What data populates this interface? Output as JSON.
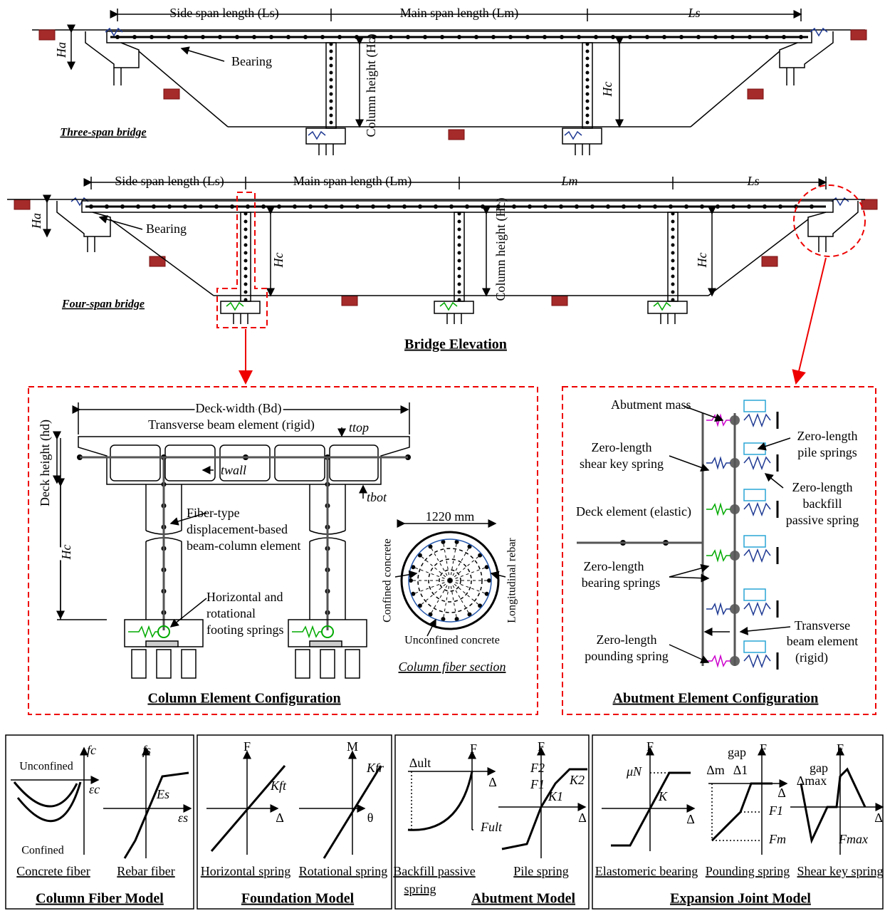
{
  "elevation": {
    "title": "Bridge Elevation",
    "three_span": {
      "label": "Three-span bridge",
      "side_span": "Side span length (Ls)",
      "main_span": "Main span length (Lm)",
      "end_span": "Ls",
      "abutment_height": "Ha",
      "bearing": "Bearing",
      "column_height": "Column height (Hc)",
      "column_height_short": "Hc"
    },
    "four_span": {
      "label": "Four-span bridge",
      "side_span": "Side span length (Ls)",
      "main_span": "Main span length (Lm)",
      "middle_span": "Lm",
      "end_span": "Ls",
      "abutment_height": "Ha",
      "bearing": "Bearing",
      "column_height_left": "Hc",
      "column_height": "Column height (Hc)",
      "column_height_right": "Hc"
    }
  },
  "column_config": {
    "title": "Column Element Configuration",
    "deck_width": "Deck width (Bd)",
    "deck_height": "Deck height (hd)",
    "transverse_beam": "Transverse beam element (rigid)",
    "t_top": "ttop",
    "t_wall": "twall",
    "t_bot": "tbot",
    "column_height": "Hc",
    "fiber_element": [
      "Fiber-type",
      "displacement-based",
      "beam-column element"
    ],
    "footing": [
      "Horizontal and",
      "rotational",
      "footing springs"
    ],
    "diameter": "1220 mm",
    "confined": "Confined concrete",
    "longitudinal": "Longitudinal rebar",
    "unconfined": "Unconfined concrete",
    "section_label": "Column fiber section"
  },
  "abutment_config": {
    "title": "Abutment Element Configuration",
    "abutment_mass": "Abutment mass",
    "pile_springs": [
      "Zero-length",
      "pile springs"
    ],
    "shear_key": [
      "Zero-length",
      "shear key spring"
    ],
    "backfill": [
      "Zero-length",
      "backfill",
      "passive spring"
    ],
    "deck_element": "Deck element (elastic)",
    "bearing_springs": [
      "Zero-length",
      "bearing springs"
    ],
    "transverse_beam": [
      "Transverse",
      "beam element",
      "(rigid)"
    ],
    "pounding": [
      "Zero-length",
      "pounding spring"
    ]
  },
  "models": [
    {
      "title": "Column Fiber Model",
      "plots": [
        {
          "caption": "Concrete fiber",
          "labels": [
            "fc",
            "εc",
            "Unconfined",
            "Confined"
          ]
        },
        {
          "caption": "Rebar fiber",
          "labels": [
            "fs",
            "εs",
            "Es"
          ]
        }
      ]
    },
    {
      "title": "Foundation Model",
      "plots": [
        {
          "caption": "Horizontal spring",
          "labels": [
            "F",
            "Δ",
            "Kft"
          ]
        },
        {
          "caption": "Rotational spring",
          "labels": [
            "M",
            "θ",
            "Kfr"
          ]
        }
      ]
    },
    {
      "title": "Abutment Model",
      "plots": [
        {
          "caption": [
            "Backfill passive",
            "spring"
          ],
          "labels": [
            "F",
            "Δ",
            "Δult",
            "Fult"
          ]
        },
        {
          "caption": "Pile spring",
          "labels": [
            "F",
            "Δ",
            "F2",
            "F1",
            "K2",
            "K1"
          ]
        }
      ]
    },
    {
      "title": "Expansion Joint Model",
      "plots": [
        {
          "caption": "Elastomeric bearing",
          "labels": [
            "F",
            "μN",
            "K",
            "Δ"
          ]
        },
        {
          "caption": "Pounding spring",
          "labels": [
            "gap",
            "F",
            "Δm",
            "Δ1",
            "Δ",
            "F1",
            "Fm"
          ]
        },
        {
          "caption": "Shear key spring",
          "labels": [
            "F",
            "gap",
            "Δmax",
            "Δ",
            "Fmax"
          ]
        }
      ]
    }
  ]
}
